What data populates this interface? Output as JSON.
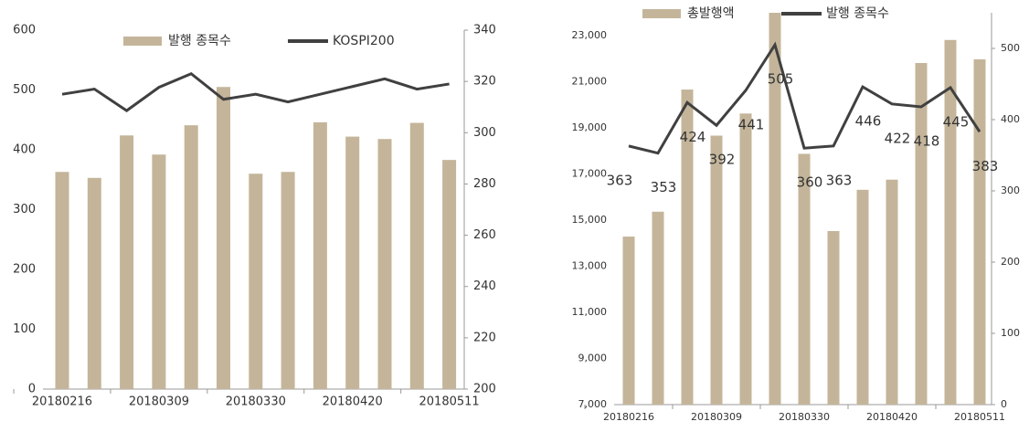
{
  "chart_data": [
    {
      "type": "bar",
      "legend": "top",
      "categories": [
        "20180216",
        null,
        null,
        "20180309",
        null,
        null,
        "20180330",
        null,
        null,
        "20180420",
        null,
        null,
        "20180511"
      ],
      "series": [
        {
          "name": "발행 종목수",
          "type": "bar",
          "color": "#c4b59a",
          "values": [
            363,
            353,
            424,
            392,
            441,
            505,
            360,
            363,
            446,
            422,
            418,
            445,
            383
          ]
        },
        {
          "name": "KOSPI200",
          "type": "line",
          "axis": "y2",
          "color": "#404040",
          "values": [
            315,
            317,
            308.6,
            317.7,
            323,
            313,
            315,
            312,
            315,
            318,
            321,
            317,
            319
          ]
        }
      ],
      "ylim": [
        0,
        600
      ],
      "yticks": [
        0,
        100,
        200,
        300,
        400,
        500,
        600
      ],
      "y2lim": [
        200,
        340
      ],
      "y2ticks": [
        200,
        220,
        240,
        260,
        280,
        300,
        320,
        340
      ]
    },
    {
      "type": "bar",
      "legend": "top",
      "categories": [
        "20180216",
        null,
        null,
        "20180309",
        null,
        null,
        "20180330",
        null,
        null,
        "20180420",
        null,
        null,
        "20180511"
      ],
      "series": [
        {
          "name": "총발행액",
          "type": "bar",
          "color": "#c4b59a",
          "values": [
            14290,
            15370,
            20670,
            18670,
            19630,
            24500,
            17880,
            14530,
            16320,
            16760,
            21820,
            22820,
            21980
          ]
        },
        {
          "name": "발행 종목수",
          "type": "line",
          "axis": "y2",
          "color": "#404040",
          "data_labels": true,
          "values": [
            363,
            353,
            424,
            392,
            441,
            505,
            360,
            363,
            446,
            422,
            418,
            445,
            383
          ]
        }
      ],
      "ylim": [
        7000,
        24000
      ],
      "yticks": [
        {
          "value": 7000,
          "label": "7,000"
        },
        {
          "value": 9000,
          "label": "9,000"
        },
        {
          "value": 11000,
          "label": "11,000"
        },
        {
          "value": 13000,
          "label": "13,000"
        },
        {
          "value": 15000,
          "label": "15,000"
        },
        {
          "value": 17000,
          "label": "17,000"
        },
        {
          "value": 19000,
          "label": "19,000"
        },
        {
          "value": 21000,
          "label": "21,000"
        },
        {
          "value": 23000,
          "label": "23,000"
        }
      ],
      "y2lim": [
        0,
        550
      ],
      "y2ticks": [
        0,
        100,
        200,
        300,
        400,
        500
      ]
    }
  ]
}
